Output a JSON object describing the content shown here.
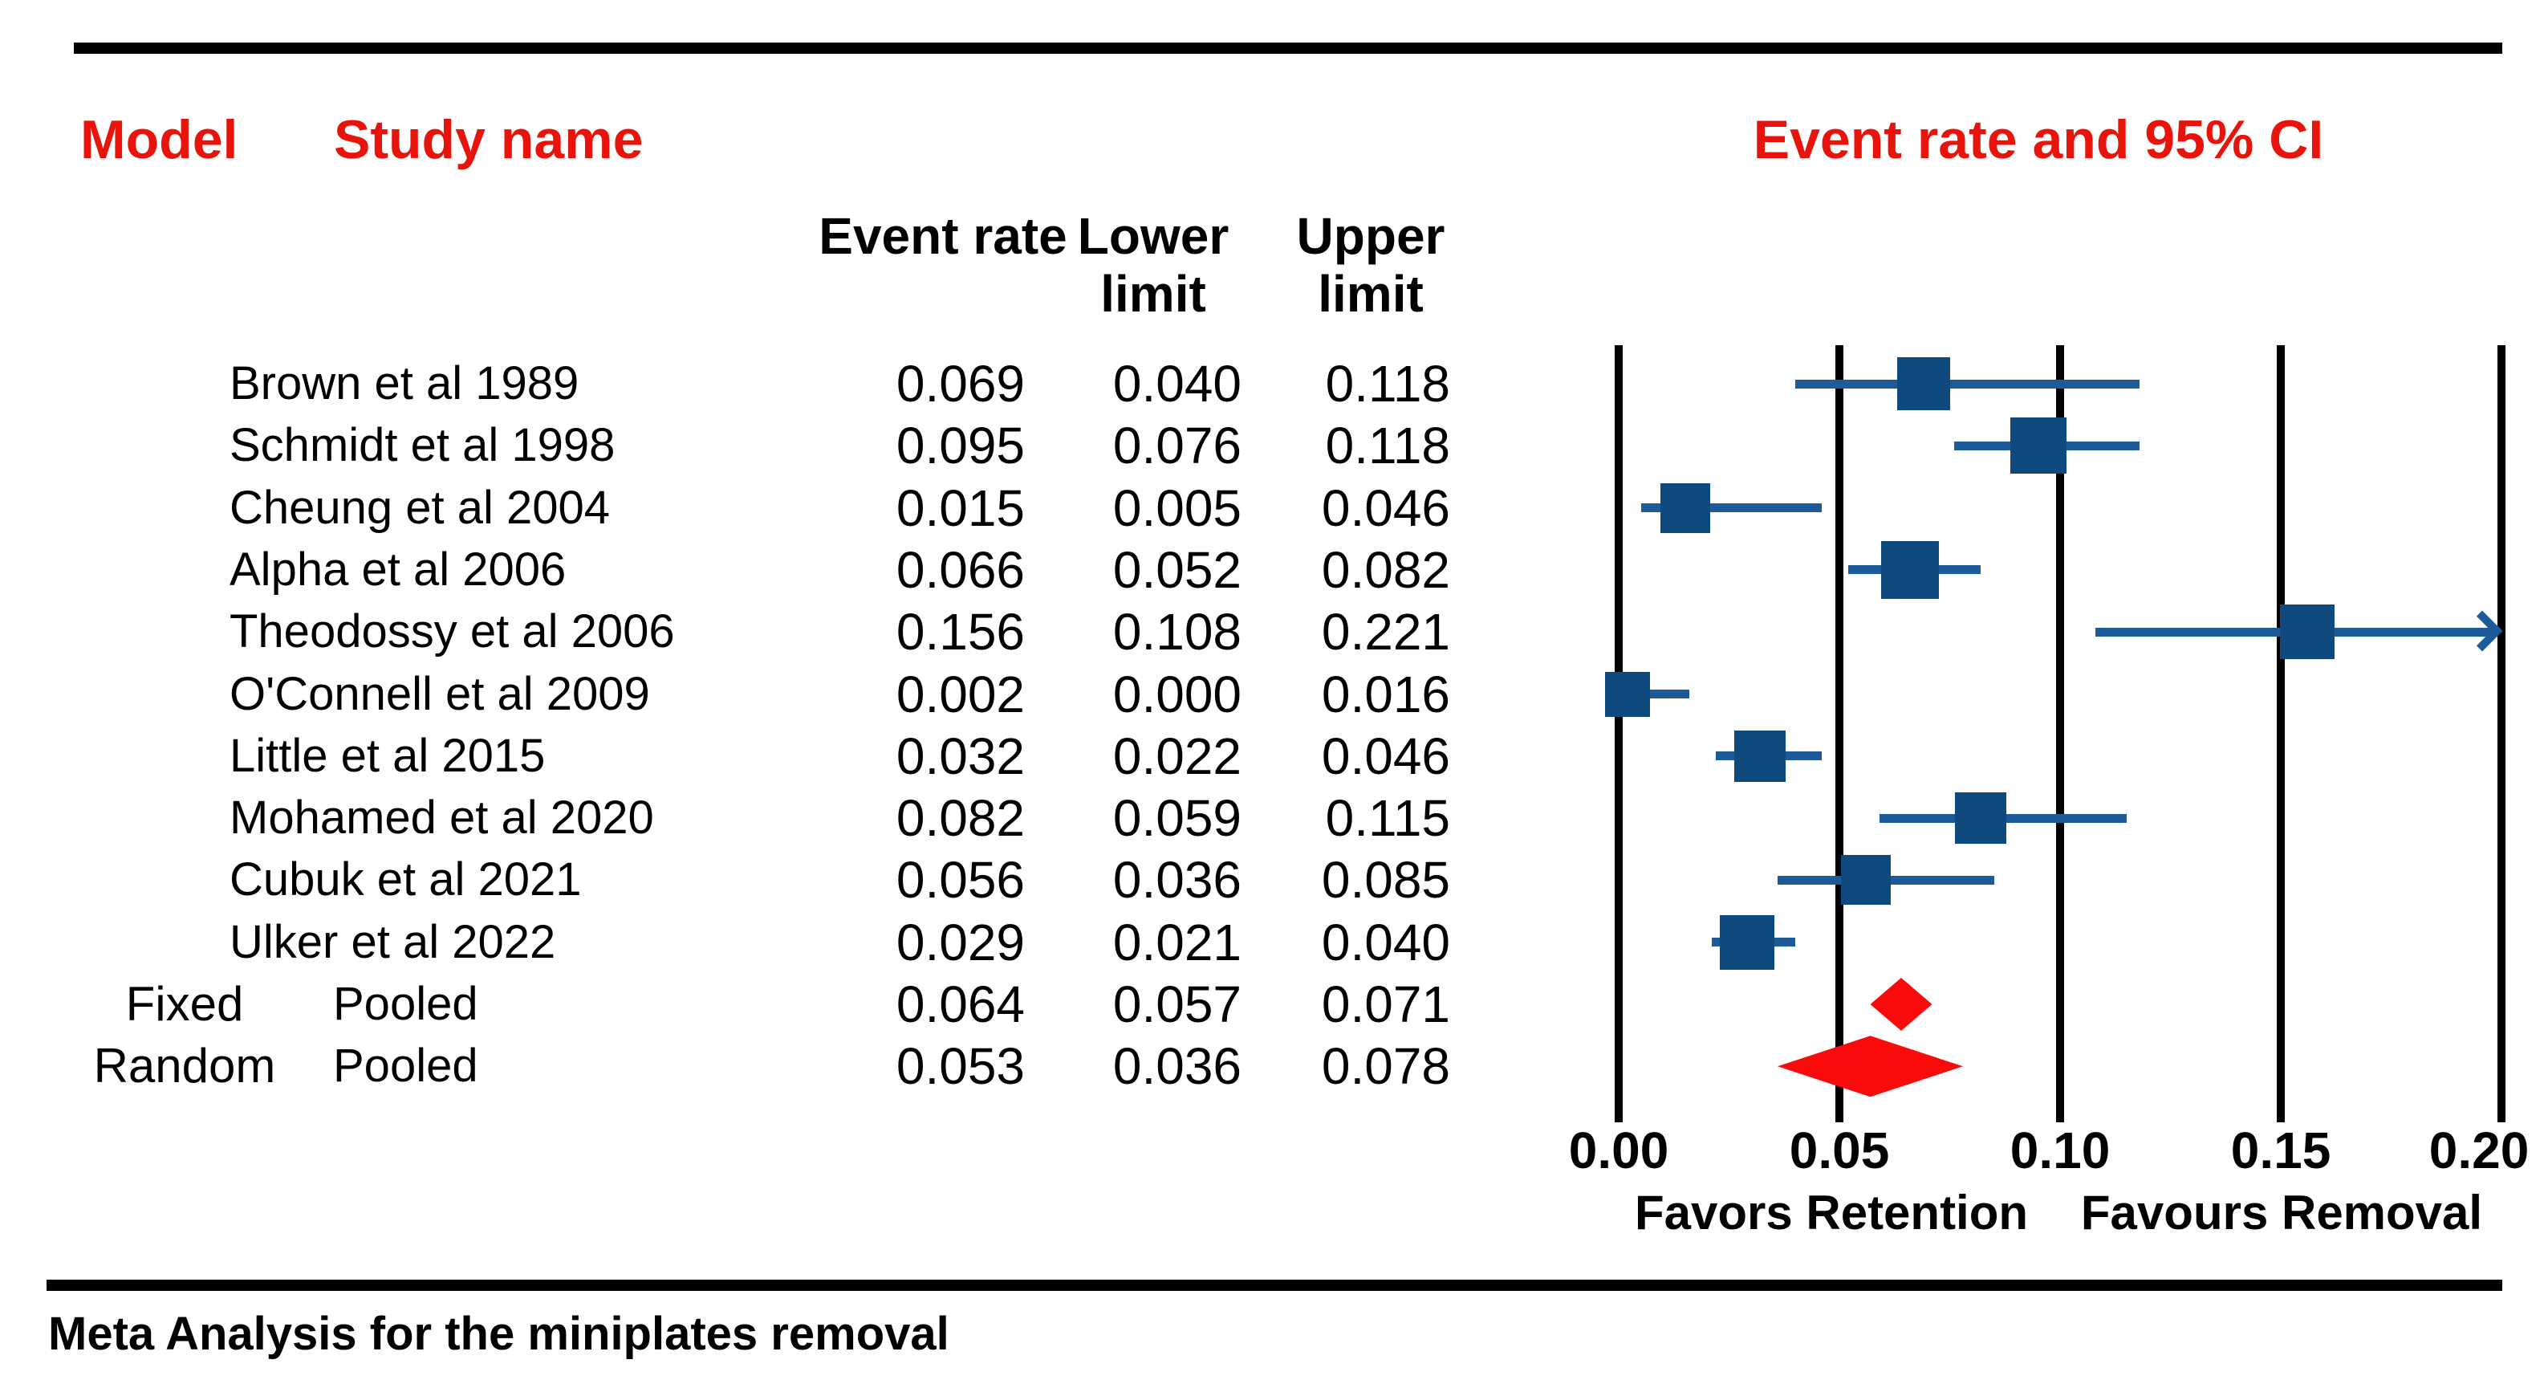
{
  "header": {
    "model_label": "Model",
    "study_name_label": "Study name"
  },
  "caption": {
    "text": "Meta Analysis for the miniplates removal"
  },
  "chart_data": {
    "type": "forest",
    "title": "Event rate and 95% CI",
    "columns": [
      "Event rate",
      "Lower limit",
      "Upper limit"
    ],
    "x_axis": {
      "min": 0.0,
      "max": 0.2,
      "ticks": [
        "0.00",
        "0.05",
        "0.10",
        "0.15",
        "0.20"
      ],
      "grid": true
    },
    "axis_labels": {
      "left": "Favors Retention",
      "right": "Favours Removal"
    },
    "studies": [
      {
        "model": "",
        "name": "Brown et al 1989",
        "rate": "0.069",
        "lower": "0.040",
        "upper": "0.118",
        "weight": 0.65
      },
      {
        "model": "",
        "name": "Schmidt et al 1998",
        "rate": "0.095",
        "lower": "0.076",
        "upper": "0.118",
        "weight": 0.75
      },
      {
        "model": "",
        "name": "Cheung et al 2004",
        "rate": "0.015",
        "lower": "0.005",
        "upper": "0.046",
        "weight": 0.55
      },
      {
        "model": "",
        "name": "Alpha et al 2006",
        "rate": "0.066",
        "lower": "0.052",
        "upper": "0.082",
        "weight": 0.8
      },
      {
        "model": "",
        "name": "Theodossy et al 2006",
        "rate": "0.156",
        "lower": "0.108",
        "upper": "0.221",
        "weight": 0.7
      },
      {
        "model": "",
        "name": "O'Connell et al 2009",
        "rate": "0.002",
        "lower": "0.000",
        "upper": "0.016",
        "weight": 0.4
      },
      {
        "model": "",
        "name": "Little et al 2015",
        "rate": "0.032",
        "lower": "0.022",
        "upper": "0.046",
        "weight": 0.6
      },
      {
        "model": "",
        "name": "Mohamed et al 2020",
        "rate": "0.082",
        "lower": "0.059",
        "upper": "0.115",
        "weight": 0.6
      },
      {
        "model": "",
        "name": "Cubuk et al 2021",
        "rate": "0.056",
        "lower": "0.036",
        "upper": "0.085",
        "weight": 0.55
      },
      {
        "model": "",
        "name": "Ulker et al 2022",
        "rate": "0.029",
        "lower": "0.021",
        "upper": "0.040",
        "weight": 0.7
      },
      {
        "model": "Fixed",
        "name": "Pooled",
        "rate": "0.064",
        "lower": "0.057",
        "upper": "0.071",
        "pooled": true
      },
      {
        "model": "Random",
        "name": "Pooled",
        "rate": "0.053",
        "lower": "0.036",
        "upper": "0.078",
        "pooled": true
      }
    ],
    "colors": {
      "header_red": "#e8140c",
      "square_blue": "#10497e",
      "ci_blue": "#1d5a99",
      "diamond_red": "#fa0a0a",
      "line_black": "#000000",
      "text_black": "#000000",
      "bg": "#ffffff"
    }
  }
}
